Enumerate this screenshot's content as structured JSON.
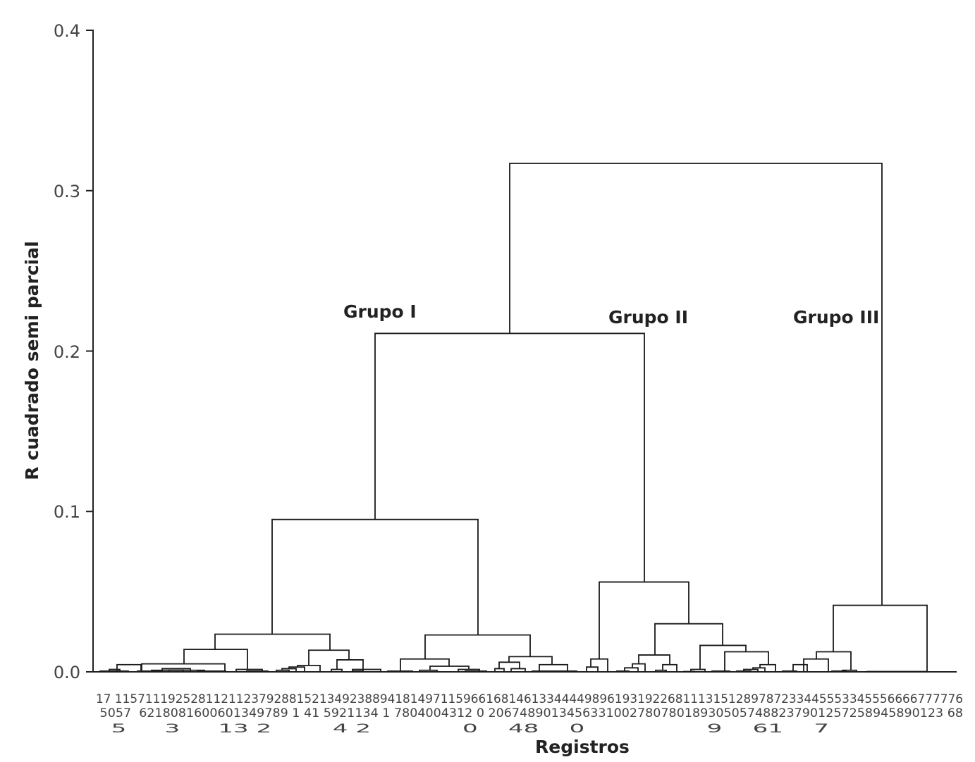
{
  "chart_data": {
    "type": "dendrogram",
    "xlabel": "Registros",
    "ylabel": "R cuadrado semi parcial",
    "ylim": [
      0,
      0.4
    ],
    "yticks": [
      "0.0",
      "0.1",
      "0.2",
      "0.3",
      "0.4"
    ],
    "group_labels": [
      "Grupo I",
      "Grupo II",
      "Grupo III"
    ],
    "leaf_label_rows": [
      "17 1157111925281121123792881521349238894181497115966168146133444498961931922681113151289787233445553345556666777776",
      " 5057  6218081600601349789 1 41 5921134 1 7804004312 0 2067489013456331002780780189305057488237901257258945890123 68",
      "  5     3     13 2        4 2            0    48    0                9    61    7"
    ],
    "merges": [
      {
        "x1": 142,
        "x2": 182,
        "h": 0.0005
      },
      {
        "x1": 155,
        "x2": 170,
        "h": 0.0015
      },
      {
        "x1": 166,
        "x2": 200,
        "h": 0.0045
      },
      {
        "x1": 195,
        "x2": 230,
        "h": 0.0005
      },
      {
        "x1": 215,
        "x2": 260,
        "h": 0.001
      },
      {
        "x1": 230,
        "x2": 270,
        "h": 0.002
      },
      {
        "x1": 240,
        "x2": 290,
        "h": 0.001
      },
      {
        "x1": 280,
        "x2": 320,
        "h": 0.0005
      },
      {
        "x1": 201,
        "x2": 319,
        "h": 0.005
      },
      {
        "x1": 335,
        "x2": 372,
        "h": 0.0015
      },
      {
        "x1": 350,
        "x2": 380,
        "h": 0.0005
      },
      {
        "x1": 261,
        "x2": 351,
        "h": 0.014
      },
      {
        "x1": 392,
        "x2": 410,
        "h": 0.001
      },
      {
        "x1": 400,
        "x2": 420,
        "h": 0.002
      },
      {
        "x1": 410,
        "x2": 432,
        "h": 0.003
      },
      {
        "x1": 422,
        "x2": 454,
        "h": 0.004
      },
      {
        "x1": 470,
        "x2": 485,
        "h": 0.0015
      },
      {
        "x1": 500,
        "x2": 515,
        "h": 0.0005
      },
      {
        "x1": 500,
        "x2": 540,
        "h": 0.0015
      },
      {
        "x1": 478,
        "x2": 515,
        "h": 0.0075
      },
      {
        "x1": 438,
        "x2": 495,
        "h": 0.0135
      },
      {
        "x1": 305,
        "x2": 468,
        "h": 0.0235
      },
      {
        "x1": 550,
        "x2": 585,
        "h": 0.0005
      },
      {
        "x1": 595,
        "x2": 620,
        "h": 0.001
      },
      {
        "x1": 610,
        "x2": 665,
        "h": 0.0035
      },
      {
        "x1": 650,
        "x2": 680,
        "h": 0.0015
      },
      {
        "x1": 660,
        "x2": 690,
        "h": 0.0005
      },
      {
        "x1": 568,
        "x2": 637,
        "h": 0.008
      },
      {
        "x1": 702,
        "x2": 715,
        "h": 0.002
      },
      {
        "x1": 725,
        "x2": 745,
        "h": 0.002
      },
      {
        "x1": 708,
        "x2": 737,
        "h": 0.006
      },
      {
        "x1": 755,
        "x2": 790,
        "h": 0.0005
      },
      {
        "x1": 765,
        "x2": 805,
        "h": 0.0045
      },
      {
        "x1": 790,
        "x2": 818,
        "h": 0.0005
      },
      {
        "x1": 722,
        "x2": 783,
        "h": 0.0095
      },
      {
        "x1": 603,
        "x2": 752,
        "h": 0.023
      },
      {
        "x1": 386,
        "x2": 678,
        "h": 0.095
      },
      {
        "x1": 832,
        "x2": 848,
        "h": 0.003
      },
      {
        "x1": 838,
        "x2": 862,
        "h": 0.008
      },
      {
        "x1": 875,
        "x2": 892,
        "h": 0.0005
      },
      {
        "x1": 886,
        "x2": 905,
        "h": 0.0025
      },
      {
        "x1": 897,
        "x2": 915,
        "h": 0.005
      },
      {
        "x1": 930,
        "x2": 945,
        "h": 0.001
      },
      {
        "x1": 940,
        "x2": 960,
        "h": 0.0045
      },
      {
        "x1": 906,
        "x2": 950,
        "h": 0.0105
      },
      {
        "x1": 970,
        "x2": 985,
        "h": 0.0002
      },
      {
        "x1": 980,
        "x2": 1000,
        "h": 0.0015
      },
      {
        "x1": 1010,
        "x2": 1035,
        "h": 0.0005
      },
      {
        "x1": 1045,
        "x2": 1065,
        "h": 0.0005
      },
      {
        "x1": 1055,
        "x2": 1075,
        "h": 0.0015
      },
      {
        "x1": 1068,
        "x2": 1085,
        "h": 0.0025
      },
      {
        "x1": 1078,
        "x2": 1100,
        "h": 0.0045
      },
      {
        "x1": 1028,
        "x2": 1090,
        "h": 0.0125
      },
      {
        "x1": 993,
        "x2": 1058,
        "h": 0.0165
      },
      {
        "x1": 929,
        "x2": 1025,
        "h": 0.03
      },
      {
        "x1": 850,
        "x2": 977,
        "h": 0.056
      },
      {
        "x1": 532,
        "x2": 914,
        "h": 0.211
      },
      {
        "x1": 1110,
        "x2": 1130,
        "h": 0.0005
      },
      {
        "x1": 1125,
        "x2": 1145,
        "h": 0.0045
      },
      {
        "x1": 1140,
        "x2": 1175,
        "h": 0.008
      },
      {
        "x1": 1180,
        "x2": 1200,
        "h": 0.0005
      },
      {
        "x1": 1195,
        "x2": 1215,
        "h": 0.001
      },
      {
        "x1": 1158,
        "x2": 1207,
        "h": 0.0125
      },
      {
        "x1": 1230,
        "x2": 1315,
        "h": 0.0002
      },
      {
        "x1": 1182,
        "x2": 1315,
        "h": 0.0415
      },
      {
        "x1": 723,
        "x2": 1251,
        "h": 0.317
      }
    ]
  }
}
